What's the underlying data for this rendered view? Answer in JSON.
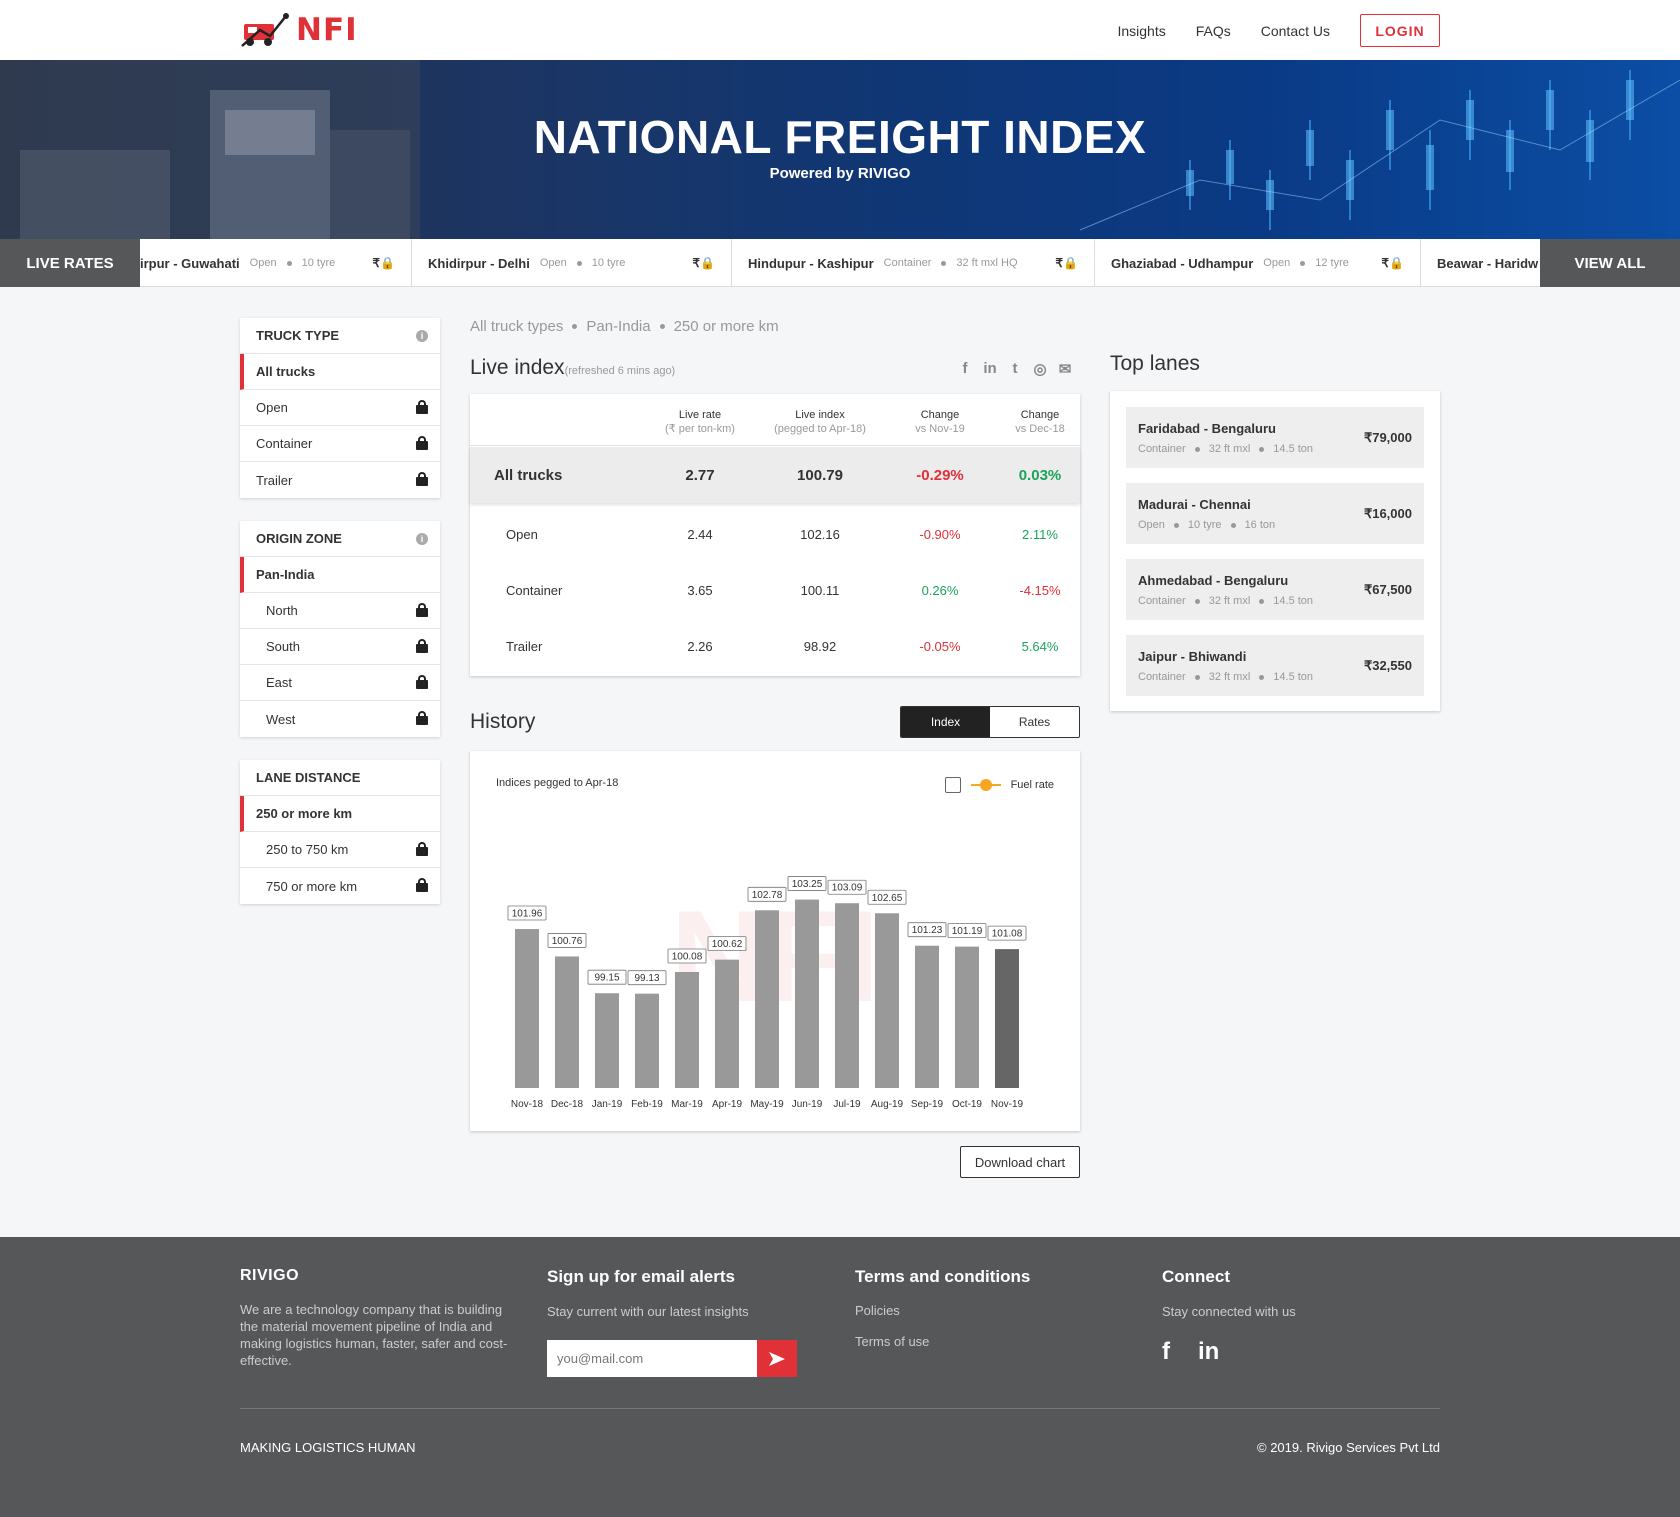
{
  "nav": {
    "brand": "NFI",
    "links": [
      "Insights",
      "FAQs",
      "Contact Us"
    ],
    "login": "LOGIN"
  },
  "hero": {
    "title": "NATIONAL FREIGHT INDEX",
    "subtitle": "Powered by RIVIGO"
  },
  "ticker": {
    "label": "LIVE RATES",
    "view_all": "VIEW ALL",
    "price_glyph": "₹",
    "items": [
      {
        "route": "irpur - Guwahati",
        "type": "Open",
        "size": "10 tyre"
      },
      {
        "route": "Khidirpur - Delhi",
        "type": "Open",
        "size": "10 tyre"
      },
      {
        "route": "Hindupur - Kashipur",
        "type": "Container",
        "size": "32 ft mxl HQ"
      },
      {
        "route": "Ghaziabad - Udhampur",
        "type": "Open",
        "size": "12 tyre"
      },
      {
        "route": "Beawar - Haridw",
        "type": "",
        "size": ""
      }
    ]
  },
  "sidebar": {
    "truck_type": {
      "title": "TRUCK TYPE",
      "items": [
        "All trucks",
        "Open",
        "Container",
        "Trailer"
      ]
    },
    "origin_zone": {
      "title": "ORIGIN ZONE",
      "items": [
        "Pan-India",
        "North",
        "South",
        "East",
        "West"
      ]
    },
    "lane_distance": {
      "title": "LANE DISTANCE",
      "items": [
        "250 or more km",
        "250 to 750 km",
        "750 or more km"
      ]
    }
  },
  "breadcrumb": [
    "All truck types",
    "Pan-India",
    "250 or more km"
  ],
  "live_index": {
    "title": "Live index",
    "refreshed": "(refreshed 6 mins ago)",
    "share_icons": [
      "facebook-icon",
      "linkedin-icon",
      "twitter-icon",
      "whatsapp-icon",
      "email-icon"
    ],
    "columns": [
      {
        "label": "Live rate",
        "sub": "(₹ per ton-km)"
      },
      {
        "label": "Live index",
        "sub": "(pegged to Apr-18)"
      },
      {
        "label": "Change",
        "sub": "vs Nov-19"
      },
      {
        "label": "Change",
        "sub": "vs Dec-18"
      }
    ],
    "rows": [
      {
        "name": "All trucks",
        "rate": "2.77",
        "index": "100.79",
        "chg1": "-0.29%",
        "chg2": "0.03%"
      },
      {
        "name": "Open",
        "rate": "2.44",
        "index": "102.16",
        "chg1": "-0.90%",
        "chg2": "2.11%"
      },
      {
        "name": "Container",
        "rate": "3.65",
        "index": "100.11",
        "chg1": "0.26%",
        "chg2": "-4.15%"
      },
      {
        "name": "Trailer",
        "rate": "2.26",
        "index": "98.92",
        "chg1": "-0.05%",
        "chg2": "5.64%"
      }
    ]
  },
  "history": {
    "title": "History",
    "tabs": [
      "Index",
      "Rates"
    ],
    "note": "Indices pegged to Apr-18",
    "fuel_label": "Fuel rate",
    "download": "Download chart",
    "watermark": "NFI"
  },
  "chart_data": {
    "type": "bar",
    "categories": [
      "Nov-18",
      "Dec-18",
      "Jan-19",
      "Feb-19",
      "Mar-19",
      "Apr-19",
      "May-19",
      "Jun-19",
      "Jul-19",
      "Aug-19",
      "Sep-19",
      "Oct-19",
      "Nov-19"
    ],
    "values": [
      101.96,
      100.76,
      99.15,
      99.13,
      100.08,
      100.62,
      102.78,
      103.25,
      103.09,
      102.65,
      101.23,
      101.19,
      101.08
    ],
    "title": "",
    "xlabel": "",
    "ylabel": "",
    "ylim": [
      95,
      103.8
    ],
    "grid": false,
    "bar_color": "#999999",
    "highlight_color": "#666666"
  },
  "top_lanes": {
    "title": "Top lanes",
    "items": [
      {
        "route": "Faridabad - Bengaluru",
        "meta": [
          "Container",
          "32 ft mxl",
          "14.5 ton"
        ],
        "price": "₹79,000"
      },
      {
        "route": "Madurai - Chennai",
        "meta": [
          "Open",
          "10 tyre",
          "16 ton"
        ],
        "price": "₹16,000"
      },
      {
        "route": "Ahmedabad - Bengaluru",
        "meta": [
          "Container",
          "32 ft mxl",
          "14.5 ton"
        ],
        "price": "₹67,500"
      },
      {
        "route": "Jaipur - Bhiwandi",
        "meta": [
          "Container",
          "32 ft mxl",
          "14.5 ton"
        ],
        "price": "₹32,550"
      }
    ]
  },
  "footer": {
    "brand": "RIVIGO",
    "about": "We are a technology company that is building the material movement pipeline of India and making logistics human, faster, safer and cost-effective.",
    "signup_title": "Sign up for email alerts",
    "signup_text": "Stay current with our latest insights",
    "email_placeholder": "you@mail.com",
    "terms_title": "Terms and conditions",
    "policies": "Policies",
    "terms_of_use": "Terms of use",
    "connect_title": "Connect",
    "connect_text": "Stay connected with us",
    "tagline": "MAKING LOGISTICS HUMAN",
    "copyright": "© 2019. Rivigo Services Pvt Ltd"
  },
  "colors": {
    "brand_red": "#e03038",
    "positive": "#1aa35a",
    "negative": "#e03038",
    "footer_bg": "#555759"
  }
}
